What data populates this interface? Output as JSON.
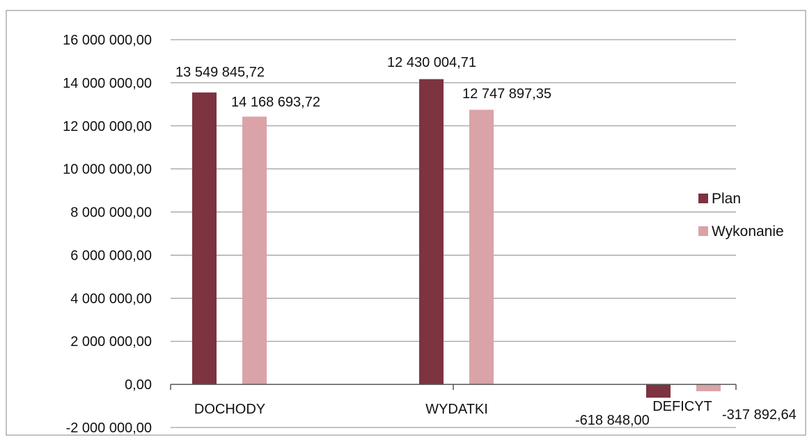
{
  "colors": {
    "plan": "#7d3340",
    "wykonanie": "#d9a3a8",
    "grid": "#8a8a8a",
    "frame": "#9a9a9a"
  },
  "chart_data": {
    "type": "bar",
    "categories": [
      "DOCHODY",
      "WYDATKI",
      "DEFICYT"
    ],
    "series": [
      {
        "name": "Plan",
        "values": [
          13549845.72,
          14168693.72,
          -618848.0
        ],
        "labels": [
          "13 549 845,72",
          "14 168 693,72",
          "-618 848,00"
        ]
      },
      {
        "name": "Wykonanie",
        "values": [
          12430004.71,
          12747897.35,
          -317892.64
        ],
        "labels": [
          "12 430 004,71",
          "12 747 897,35",
          "-317 892,64"
        ]
      }
    ],
    "ylim": [
      -2000000,
      16000000
    ],
    "yticks": [
      {
        "value": 16000000,
        "label": "16 000 000,00"
      },
      {
        "value": 14000000,
        "label": "14 000 000,00"
      },
      {
        "value": 12000000,
        "label": "12 000 000,00"
      },
      {
        "value": 10000000,
        "label": "10 000 000,00"
      },
      {
        "value": 8000000,
        "label": "8 000 000,00"
      },
      {
        "value": 6000000,
        "label": "6 000 000,00"
      },
      {
        "value": 4000000,
        "label": "4 000 000,00"
      },
      {
        "value": 2000000,
        "label": "2 000 000,00"
      },
      {
        "value": 0,
        "label": "0,00"
      },
      {
        "value": -2000000,
        "label": "-2 000 000,00"
      }
    ],
    "grid": true,
    "legend": "right"
  }
}
